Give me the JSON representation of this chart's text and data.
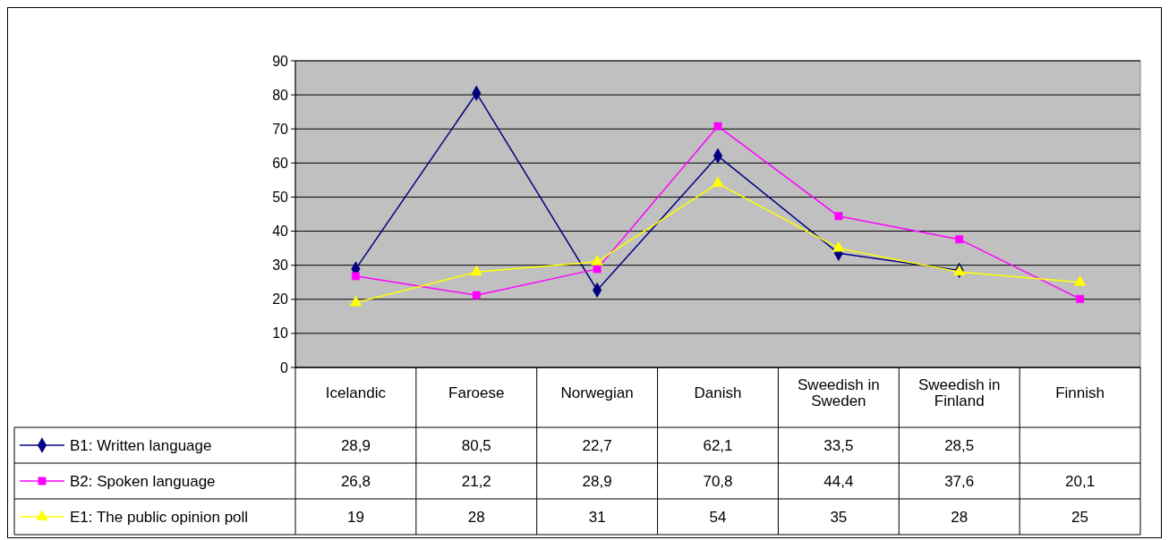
{
  "chart_data": {
    "type": "line",
    "categories": [
      "Icelandic",
      "Faroese",
      "Norwegian",
      "Danish",
      "Sweedish in Sweden",
      "Sweedish in Finland",
      "Finnish"
    ],
    "series": [
      {
        "name": "B1: Written language",
        "color": "#000080",
        "marker": "diamond",
        "values": [
          28.9,
          80.5,
          22.7,
          62.1,
          33.5,
          28.5,
          null
        ],
        "value_labels": [
          "28,9",
          "80,5",
          "22,7",
          "62,1",
          "33,5",
          "28,5",
          null
        ]
      },
      {
        "name": "B2: Spoken language",
        "color": "#ff00ff",
        "marker": "square",
        "values": [
          26.8,
          21.2,
          28.9,
          70.8,
          44.4,
          37.6,
          20.1
        ],
        "value_labels": [
          "26,8",
          "21,2",
          "28,9",
          "70,8",
          "44,4",
          "37,6",
          "20,1"
        ]
      },
      {
        "name": "E1: The public opinion poll",
        "color": "#ffff00",
        "marker": "triangle",
        "values": [
          19,
          28,
          31,
          54,
          35,
          28,
          25
        ],
        "value_labels": [
          "19",
          "28",
          "31",
          "54",
          "35",
          "28",
          "25"
        ]
      }
    ],
    "ylim": [
      0,
      90
    ],
    "yticks": [
      0,
      10,
      20,
      30,
      40,
      50,
      60,
      70,
      80,
      90
    ],
    "grid": "y",
    "legend": "bottom left",
    "line_style": "solid"
  }
}
